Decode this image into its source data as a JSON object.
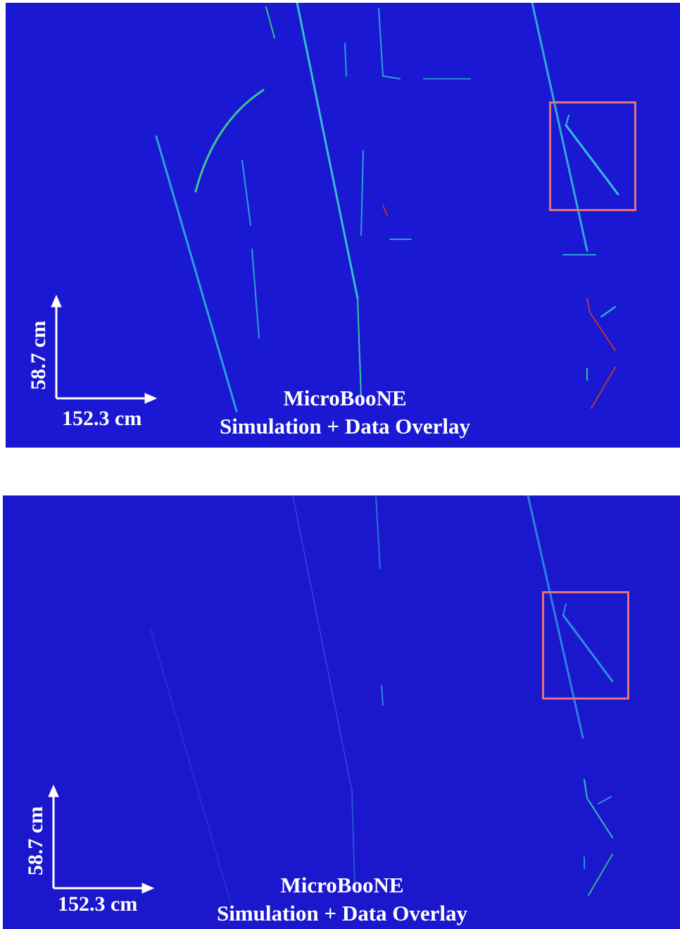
{
  "panels": [
    {
      "id": "top",
      "label_main": "MicroBooNE",
      "label_sub": "Simulation + Data Overlay",
      "scale_vertical": "58.7 cm",
      "scale_horizontal": "152.3 cm",
      "track_color": "#34c0d0",
      "highlight_color": "#e5727a",
      "background_color": "#1a18d2"
    },
    {
      "id": "bottom",
      "label_main": "MicroBooNE",
      "label_sub": "Simulation + Data Overlay",
      "scale_vertical": "58.7 cm",
      "scale_horizontal": "152.3 cm",
      "track_color": "#2a6ad8",
      "highlight_color": "#e5727a",
      "background_color": "#1b17cc"
    }
  ]
}
